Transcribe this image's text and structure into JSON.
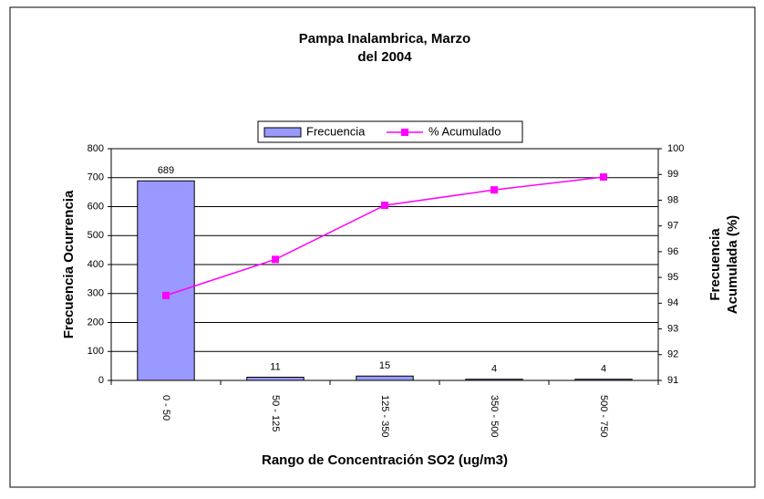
{
  "chart_data": {
    "type": "bar-line",
    "title": [
      "Pampa Inalambrica, Marzo",
      "del 2004"
    ],
    "x_label": "Rango de Concentración SO2 (ug/m3)",
    "y_label": "Frecuencia Ocurrencia",
    "y2_label": [
      "Frecuencia",
      "Acumulada (%)"
    ],
    "categories": [
      "0 - 50",
      "50 - 125",
      "125 - 350",
      "350 - 500",
      "500 - 750"
    ],
    "series": [
      {
        "name": "Frecuencia",
        "type": "bar",
        "color": "#9999ff",
        "values": [
          689,
          11,
          15,
          4,
          4
        ]
      },
      {
        "name": "% Acumulado",
        "type": "line",
        "color": "#ff00ff",
        "axis": "y2",
        "values": [
          94.3,
          95.7,
          97.8,
          98.4,
          98.9
        ]
      }
    ],
    "ylim": [
      0,
      800
    ],
    "yticks": [
      0,
      100,
      200,
      300,
      400,
      500,
      600,
      700,
      800
    ],
    "y2lim": [
      91,
      100
    ],
    "y2ticks": [
      91,
      92,
      93,
      94,
      95,
      96,
      97,
      98,
      99,
      100
    ],
    "grid": true,
    "legend": "top"
  }
}
